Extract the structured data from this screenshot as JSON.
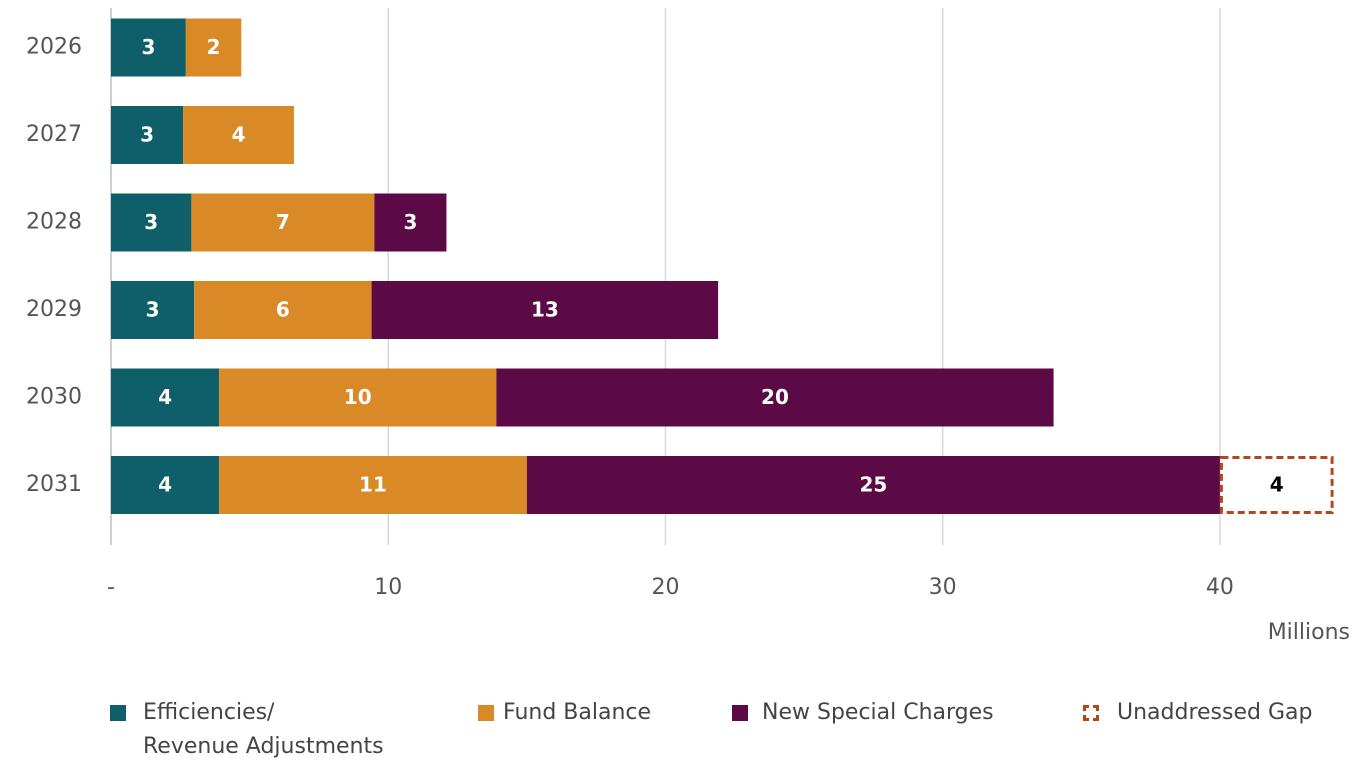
{
  "chart_data": {
    "type": "stacked-bar-horizontal",
    "categories": [
      "2026",
      "2027",
      "2028",
      "2029",
      "2030",
      "2031"
    ],
    "series": [
      {
        "name": "Efficiencies/\nRevenue Adjustments",
        "color": "#0f5f6b",
        "values": [
          2.7,
          2.6,
          2.9,
          3.0,
          3.9,
          3.9
        ],
        "value_labels": [
          "3",
          "3",
          "3",
          "3",
          "4",
          "4"
        ]
      },
      {
        "name": "Fund Balance",
        "color": "#d98a26",
        "values": [
          2.0,
          4.0,
          6.6,
          6.4,
          10.0,
          11.1
        ],
        "value_labels": [
          "2",
          "4",
          "7",
          "6",
          "10",
          "11"
        ]
      },
      {
        "name": "New Special Charges",
        "color": "#5c0a45",
        "values": [
          null,
          null,
          2.6,
          12.5,
          20.1,
          25.0
        ],
        "value_labels": [
          null,
          null,
          "3",
          "13",
          "20",
          "25"
        ]
      },
      {
        "name": "Unaddressed Gap",
        "color": "#b5451b",
        "dashed": true,
        "values": [
          null,
          null,
          null,
          null,
          null,
          4.1
        ],
        "value_labels": [
          null,
          null,
          null,
          null,
          null,
          "4"
        ]
      }
    ],
    "xlim": [
      0,
      44
    ],
    "xticks": [
      {
        "value": 0,
        "label": "-"
      },
      10,
      20,
      30,
      40
    ],
    "xlabel": "Millions",
    "grid": true,
    "legend": "bottom"
  }
}
